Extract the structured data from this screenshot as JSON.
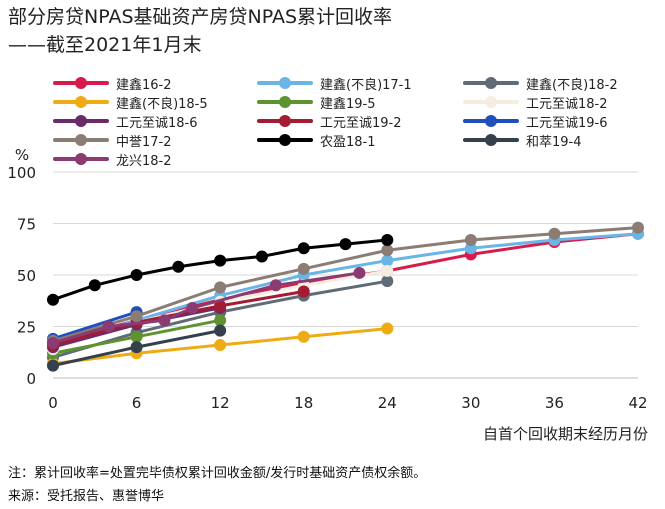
{
  "title": "部分房贷NPAS基础资产房贷NPAS累计回收率",
  "subtitle": "——截至2021年1月末",
  "footnote": "注：累计回收率=处置完毕债权累计回收金额/发行时基础资产债权余额。",
  "source": "来源：受托报告、惠誉博华",
  "chart_data": {
    "type": "line",
    "ylabel": "%",
    "xlabel": "自首个回收期末经历月份",
    "xlim": [
      0,
      42
    ],
    "ylim": [
      0,
      100
    ],
    "xticks": [
      0,
      6,
      12,
      18,
      24,
      30,
      36,
      42
    ],
    "yticks": [
      0,
      25,
      50,
      75,
      100
    ],
    "grid": "horizontal",
    "legend_position": "top",
    "series": [
      {
        "name": "建鑫16-2",
        "color": "#d81b4a",
        "x": [
          0,
          6,
          12,
          18,
          24,
          30,
          36,
          42
        ],
        "values": [
          17,
          28,
          38,
          46,
          52,
          60,
          66,
          70
        ]
      },
      {
        "name": "建鑫(不良)17-1",
        "color": "#6ab4e6",
        "x": [
          0,
          6,
          12,
          18,
          24,
          30,
          36,
          42
        ],
        "values": [
          15,
          28,
          40,
          50,
          57,
          63,
          67,
          70
        ]
      },
      {
        "name": "建鑫(不良)18-2",
        "color": "#5f6b76",
        "x": [
          0,
          6,
          12,
          18,
          24
        ],
        "values": [
          10,
          22,
          32,
          40,
          47
        ]
      },
      {
        "name": "建鑫(不良)18-5",
        "color": "#eeab14",
        "x": [
          0,
          6,
          12,
          18,
          24
        ],
        "values": [
          7,
          12,
          16,
          20,
          24
        ]
      },
      {
        "name": "建鑫19-5",
        "color": "#5e932f",
        "x": [
          0,
          6,
          12
        ],
        "values": [
          12,
          20,
          28
        ]
      },
      {
        "name": "工元至诚18-2",
        "color": "#f4ede0",
        "x": [
          0,
          6,
          12,
          18,
          24
        ],
        "values": [
          14,
          27,
          37,
          45,
          52
        ]
      },
      {
        "name": "工元至诚18-6",
        "color": "#6b2a6a",
        "x": [
          0,
          6,
          12
        ],
        "values": [
          15,
          26,
          34
        ]
      },
      {
        "name": "工元至诚19-2",
        "color": "#a31c34",
        "x": [
          0,
          6,
          12,
          18
        ],
        "values": [
          16,
          27,
          35,
          42
        ]
      },
      {
        "name": "工元至诚19-6",
        "color": "#1f4fbb",
        "x": [
          0,
          6
        ],
        "values": [
          19,
          32
        ]
      },
      {
        "name": "中誉17-2",
        "color": "#8b7c74",
        "x": [
          0,
          6,
          12,
          18,
          24,
          30,
          36,
          42
        ],
        "values": [
          18,
          30,
          44,
          53,
          62,
          67,
          70,
          73
        ]
      },
      {
        "name": "农盈18-1",
        "color": "#000000",
        "x": [
          0,
          3,
          6,
          9,
          12,
          15,
          18,
          21,
          24
        ],
        "values": [
          38,
          45,
          50,
          54,
          57,
          59,
          63,
          65,
          67
        ]
      },
      {
        "name": "和萃19-4",
        "color": "#34404c",
        "x": [
          0,
          6,
          12
        ],
        "values": [
          6,
          15,
          23
        ]
      },
      {
        "name": "龙兴18-2",
        "color": "#8b3b72",
        "x": [
          0,
          4,
          8,
          10,
          16,
          22
        ],
        "values": [
          17,
          25,
          28,
          34,
          45,
          51
        ]
      }
    ]
  }
}
